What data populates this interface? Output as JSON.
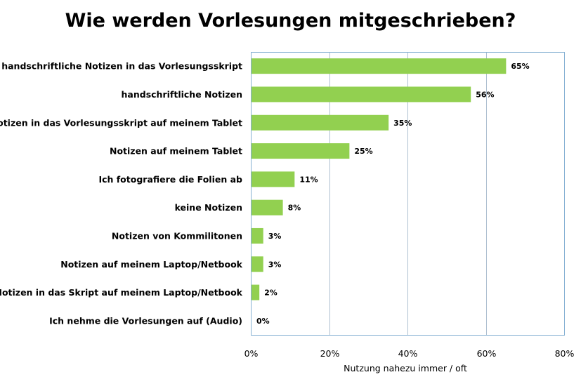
{
  "chart_data": {
    "type": "bar",
    "orientation": "horizontal",
    "title": "Wie werden Vorlesungen mitgeschrieben?",
    "xlabel": "Nutzung nahezu immer / oft",
    "ylabel": "",
    "xlim": [
      0,
      80
    ],
    "xticks": [
      "0%",
      "20%",
      "40%",
      "60%",
      "80%"
    ],
    "grid": "vertical",
    "legend": "none",
    "bar_color": "#92d050",
    "categories": [
      "handschriftliche Notizen in das Vorlesungsskript",
      "handschriftliche Notizen",
      "Notizen in das Vorlesungsskript auf meinem Tablet",
      "Notizen auf meinem Tablet",
      "Ich fotografiere die Folien ab",
      "keine Notizen",
      "Notizen von Kommilitonen",
      "Notizen auf meinem Laptop/Netbook",
      "Notizen in das Skript auf meinem Laptop/Netbook",
      "Ich nehme die Vorlesungen auf (Audio)"
    ],
    "values": [
      65,
      56,
      35,
      25,
      11,
      8,
      3,
      3,
      2,
      0
    ],
    "value_labels": [
      "65%",
      "56%",
      "35%",
      "25%",
      "11%",
      "8%",
      "3%",
      "3%",
      "2%",
      "0%"
    ]
  }
}
